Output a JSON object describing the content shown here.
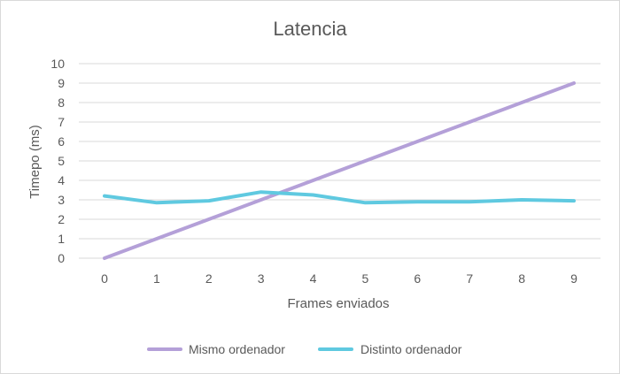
{
  "chart_data": {
    "type": "line",
    "title": "Latencia",
    "xlabel": "Frames enviados",
    "ylabel": "Timepo (ms)",
    "categories": [
      "0",
      "1",
      "2",
      "3",
      "4",
      "5",
      "6",
      "7",
      "8",
      "9"
    ],
    "ylim": [
      0,
      10
    ],
    "yticks": [
      "0",
      "1",
      "2",
      "3",
      "4",
      "5",
      "6",
      "7",
      "8",
      "9",
      "10"
    ],
    "grid": true,
    "legend": "bottom",
    "series": [
      {
        "name": "Mismo ordenador",
        "color": "#b4a0d8",
        "values": [
          0,
          1,
          2,
          3,
          4,
          5,
          6,
          7,
          8,
          9
        ]
      },
      {
        "name": "Distinto ordenador",
        "color": "#5fc9e0",
        "values": [
          3.2,
          2.85,
          2.95,
          3.4,
          3.25,
          2.85,
          2.9,
          2.9,
          3.0,
          2.95
        ]
      }
    ]
  }
}
